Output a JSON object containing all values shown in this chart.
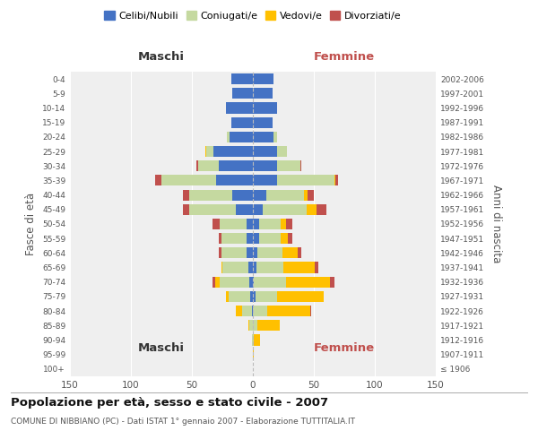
{
  "age_groups": [
    "100+",
    "95-99",
    "90-94",
    "85-89",
    "80-84",
    "75-79",
    "70-74",
    "65-69",
    "60-64",
    "55-59",
    "50-54",
    "45-49",
    "40-44",
    "35-39",
    "30-34",
    "25-29",
    "20-24",
    "15-19",
    "10-14",
    "5-9",
    "0-4"
  ],
  "birth_years": [
    "≤ 1906",
    "1907-1911",
    "1912-1916",
    "1917-1921",
    "1922-1926",
    "1927-1931",
    "1932-1936",
    "1937-1941",
    "1942-1946",
    "1947-1951",
    "1952-1956",
    "1957-1961",
    "1962-1966",
    "1967-1971",
    "1972-1976",
    "1977-1981",
    "1982-1986",
    "1987-1991",
    "1992-1996",
    "1997-2001",
    "2002-2006"
  ],
  "males": {
    "celibi": [
      0,
      0,
      0,
      0,
      1,
      2,
      3,
      4,
      5,
      5,
      5,
      14,
      17,
      30,
      28,
      32,
      19,
      18,
      22,
      17,
      18
    ],
    "coniugati": [
      0,
      0,
      1,
      3,
      8,
      18,
      24,
      21,
      21,
      21,
      22,
      38,
      35,
      45,
      17,
      6,
      2,
      0,
      0,
      0,
      0
    ],
    "vedovi": [
      0,
      0,
      0,
      1,
      5,
      2,
      4,
      1,
      0,
      0,
      0,
      0,
      0,
      0,
      0,
      1,
      0,
      0,
      0,
      0,
      0
    ],
    "divorziati": [
      0,
      0,
      0,
      0,
      0,
      0,
      2,
      0,
      2,
      2,
      6,
      5,
      5,
      5,
      1,
      0,
      0,
      0,
      0,
      0,
      0
    ]
  },
  "females": {
    "nubili": [
      0,
      0,
      0,
      0,
      0,
      2,
      1,
      3,
      4,
      5,
      5,
      8,
      11,
      20,
      20,
      20,
      17,
      16,
      20,
      16,
      17
    ],
    "coniugate": [
      0,
      0,
      1,
      4,
      12,
      18,
      26,
      22,
      20,
      18,
      18,
      36,
      31,
      47,
      19,
      8,
      3,
      0,
      0,
      0,
      0
    ],
    "vedove": [
      0,
      1,
      5,
      18,
      35,
      38,
      36,
      26,
      13,
      6,
      4,
      8,
      3,
      1,
      0,
      0,
      0,
      0,
      0,
      0,
      0
    ],
    "divorziate": [
      0,
      0,
      0,
      0,
      1,
      0,
      4,
      3,
      3,
      3,
      5,
      8,
      5,
      2,
      1,
      0,
      0,
      0,
      0,
      0,
      0
    ]
  },
  "colors": {
    "celibi": "#4472c4",
    "coniugati": "#c5d9a0",
    "vedovi": "#ffc000",
    "divorziati": "#c0504d"
  },
  "xlim": 150,
  "title": "Popolazione per età, sesso e stato civile - 2007",
  "subtitle": "COMUNE DI NIBBIANO (PC) - Dati ISTAT 1° gennaio 2007 - Elaborazione TUTTITALIA.IT",
  "ylabel_left": "Fasce di età",
  "ylabel_right": "Anni di nascita",
  "header_left": "Maschi",
  "header_right": "Femmine",
  "legend_labels": [
    "Celibi/Nubili",
    "Coniugati/e",
    "Vedovi/e",
    "Divorziati/e"
  ]
}
